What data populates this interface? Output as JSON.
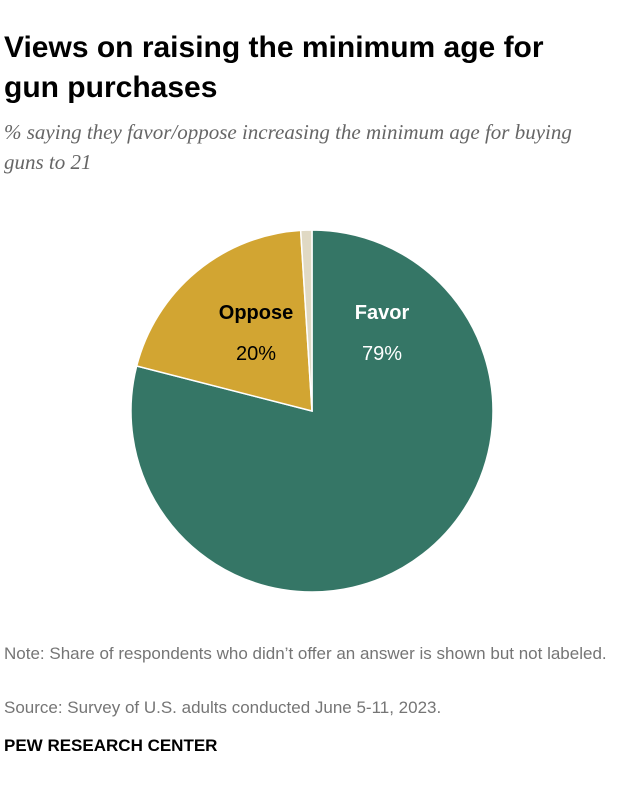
{
  "title": "Views on raising the minimum age for gun purchases",
  "subtitle": "% saying they favor/oppose increasing the minimum age for buying guns to 21",
  "note": "Note: Share of respondents who didn’t offer an answer is shown but not labeled.",
  "source": "Source: Survey of U.S. adults conducted June 5-11, 2023.",
  "brand": "PEW RESEARCH CENTER",
  "colors": {
    "favor": "#357666",
    "oppose": "#d2a532",
    "no_answer": "#e0d9c4",
    "label_dark": "#000000",
    "label_light": "#ffffff"
  },
  "chart_data": {
    "type": "pie",
    "categories": [
      "Favor",
      "Oppose",
      "No answer"
    ],
    "values": [
      79,
      20,
      1
    ],
    "labels": [
      {
        "name": "Favor",
        "value_text": "79%"
      },
      {
        "name": "Oppose",
        "value_text": "20%"
      },
      {
        "name": "",
        "value_text": ""
      }
    ]
  }
}
